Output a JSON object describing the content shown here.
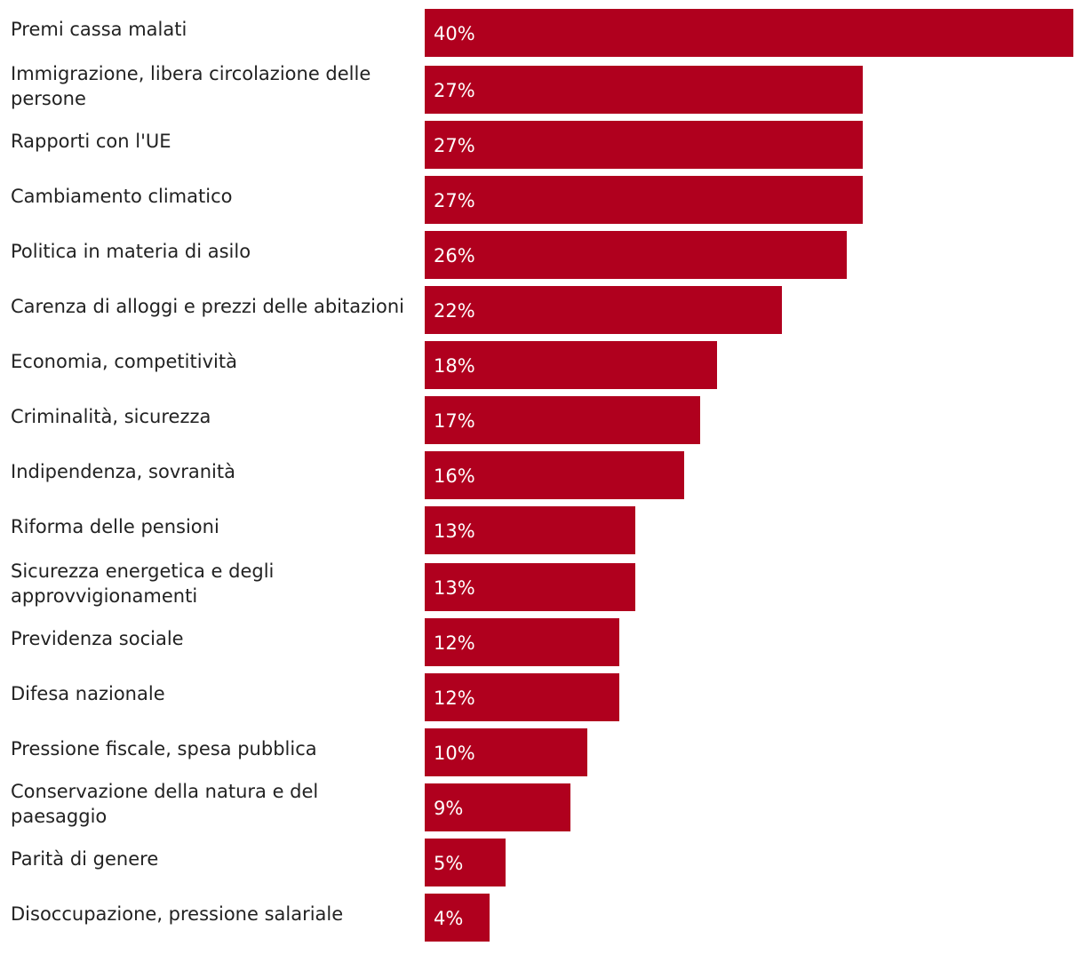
{
  "chart_data": {
    "type": "bar",
    "orientation": "horizontal",
    "title": "",
    "xlabel": "",
    "ylabel": "",
    "xlim": [
      0,
      40
    ],
    "bar_color": "#b0001e",
    "categories": [
      "Premi cassa malati",
      "Immigrazione, libera circolazione delle persone",
      "Rapporti con l'UE",
      "Cambiamento climatico",
      "Politica in materia di asilo",
      "Carenza di alloggi e prezzi delle abitazioni",
      "Economia, competitività",
      "Criminalità, sicurezza",
      "Indipendenza, sovranità",
      "Riforma delle pensioni",
      "Sicurezza energetica e degli approvvigionamenti",
      "Previdenza sociale",
      "Difesa nazionale",
      "Pressione fiscale, spesa pubblica",
      "Conservazione della natura e del paesaggio",
      "Parità di genere",
      "Disoccupazione, pressione salariale"
    ],
    "values": [
      40,
      27,
      27,
      27,
      26,
      22,
      18,
      17,
      16,
      13,
      13,
      12,
      12,
      10,
      9,
      5,
      4
    ],
    "value_labels": [
      "40%",
      "27%",
      "27%",
      "27%",
      "26%",
      "22%",
      "18%",
      "17%",
      "16%",
      "13%",
      "13%",
      "12%",
      "12%",
      "10%",
      "9%",
      "5%",
      "4%"
    ]
  }
}
